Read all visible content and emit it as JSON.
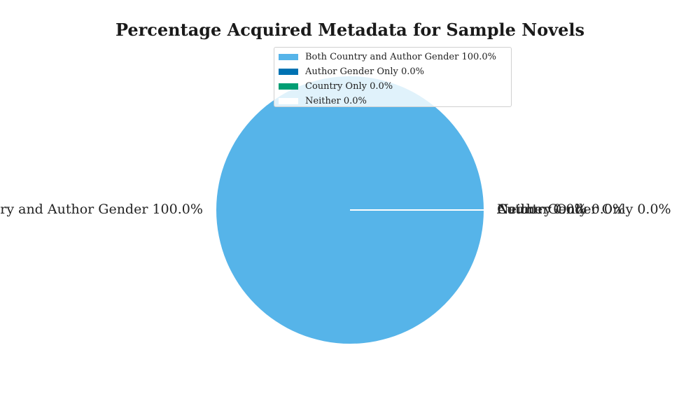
{
  "chart_data": {
    "type": "pie",
    "title": "Percentage Acquired Metadata for Sample Novels",
    "slices": [
      {
        "label": "Both Country and Author Gender 100.0%",
        "value": 100.0,
        "color": "#56b4e9"
      },
      {
        "label": "Author Gender Only 0.0%",
        "value": 0.0,
        "color": "#0072b2"
      },
      {
        "label": "Country Only 0.0%",
        "value": 0.0,
        "color": "#009e73"
      },
      {
        "label": "Neither 0.0%",
        "value": 0.0,
        "color": "#ffffff"
      }
    ],
    "legend_placement": "upper-center"
  }
}
